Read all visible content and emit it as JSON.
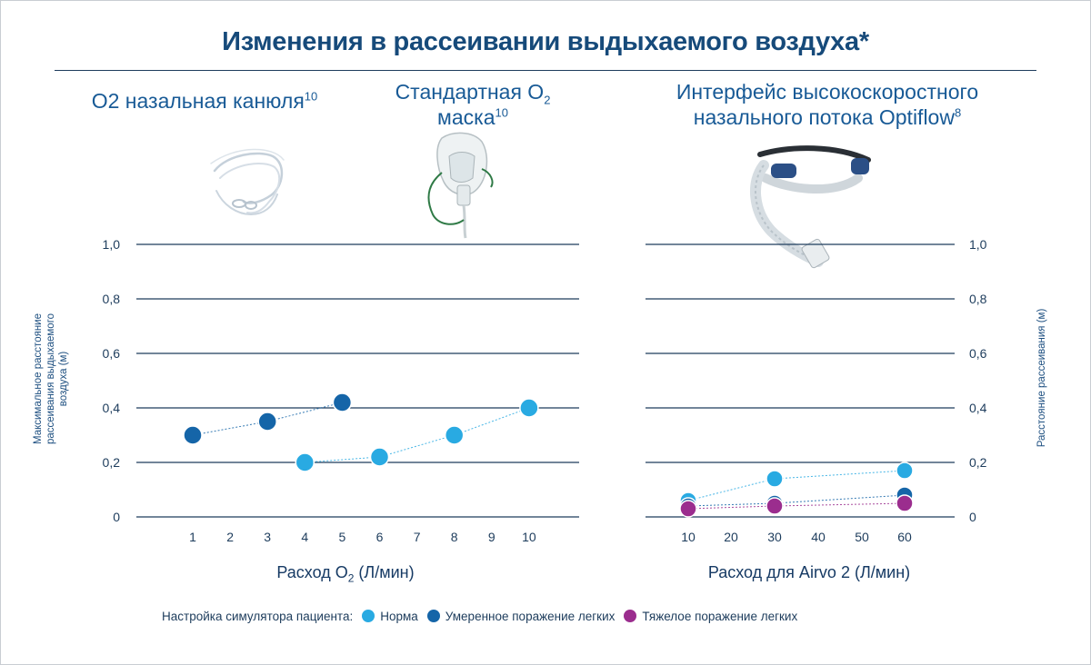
{
  "title": "Изменения в рассеивании выдыхаемого воздуха*",
  "panels": {
    "nasal_cannula": {
      "label": "О2 назальная канюля",
      "ref": "10"
    },
    "o2_mask": {
      "label_line1": "Стандартная O",
      "label_line1_sub": "2",
      "label_line2": "маска",
      "ref": "10"
    },
    "optiflow": {
      "label_line1": "Интерфейс высокоскоростного",
      "label_line2": "назального потока Optiflow",
      "ref": "8"
    }
  },
  "left_chart": {
    "ylabel_line1": "Максимальное расстояние",
    "ylabel_line2": "рассеивания выдыхаемого",
    "ylabel_line3": "воздуха (м)",
    "xlabel_prefix": "Расход O",
    "xlabel_sub": "2",
    "xlabel_suffix": " (Л/мин)"
  },
  "right_chart": {
    "ylabel": "Расстояние рассеивания (м)",
    "xlabel": "Расход для Airvo 2 (Л/мин)"
  },
  "legend": {
    "prefix": "Настройка симулятора пациента:",
    "normal": "Норма",
    "moderate": "Умеренное поражение легких",
    "severe": "Тяжелое поражение легких"
  },
  "colors": {
    "normal": "#29aae2",
    "moderate": "#1565a8",
    "severe": "#9b2d8e",
    "gridline": "#1d3c5c",
    "heading": "#185a96"
  },
  "chart_data": [
    {
      "type": "scatter",
      "x_ticks": [
        "1",
        "2",
        "3",
        "4",
        "5",
        "6",
        "7",
        "8",
        "9",
        "10"
      ],
      "y_ticks": [
        "0",
        "0,2",
        "0,4",
        "0,6",
        "0,8",
        "1,0"
      ],
      "ylim": [
        0,
        1.0
      ],
      "xlim": [
        0,
        11
      ],
      "grid": true,
      "series": [
        {
          "name": "Умеренное поражение легких",
          "x": [
            1,
            3,
            5
          ],
          "y": [
            0.3,
            0.35,
            0.42
          ]
        },
        {
          "name": "Норма",
          "x": [
            4,
            6,
            8,
            10
          ],
          "y": [
            0.2,
            0.22,
            0.3,
            0.4
          ]
        }
      ]
    },
    {
      "type": "scatter",
      "x_ticks": [
        "10",
        "20",
        "30",
        "40",
        "50",
        "60"
      ],
      "y_ticks": [
        "0",
        "0,2",
        "0,4",
        "0,6",
        "0,8",
        "1,0"
      ],
      "ylim": [
        0,
        1.0
      ],
      "grid": true,
      "series": [
        {
          "name": "Норма",
          "x": [
            10,
            30,
            60
          ],
          "y": [
            0.06,
            0.14,
            0.17
          ]
        },
        {
          "name": "Умеренное поражение легких",
          "x": [
            10,
            30,
            60
          ],
          "y": [
            0.04,
            0.05,
            0.08
          ]
        },
        {
          "name": "Тяжелое поражение легких",
          "x": [
            10,
            30,
            60
          ],
          "y": [
            0.03,
            0.04,
            0.05
          ]
        }
      ]
    }
  ]
}
